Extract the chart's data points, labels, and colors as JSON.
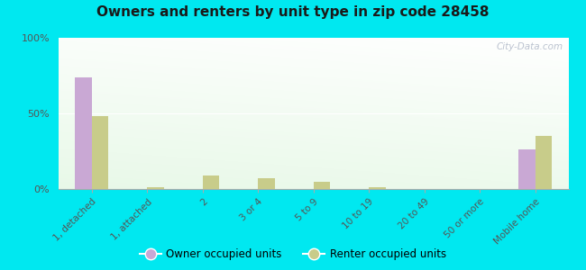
{
  "title": "Owners and renters by unit type in zip code 28458",
  "categories": [
    "1, detached",
    "1, attached",
    "2",
    "3 or 4",
    "5 to 9",
    "10 to 19",
    "20 to 49",
    "50 or more",
    "Mobile home"
  ],
  "owner_values": [
    74,
    0,
    0,
    0,
    0,
    0,
    0,
    0,
    26
  ],
  "renter_values": [
    48,
    1,
    9,
    7,
    5,
    1,
    0,
    0,
    35
  ],
  "owner_color": "#c9a8d4",
  "renter_color": "#c8cc8a",
  "outer_bg": "#00e8f0",
  "ylim": [
    0,
    100
  ],
  "yticks": [
    0,
    50,
    100
  ],
  "ytick_labels": [
    "0%",
    "50%",
    "100%"
  ],
  "bar_width": 0.3,
  "legend_owner": "Owner occupied units",
  "legend_renter": "Renter occupied units",
  "watermark": "City-Data.com"
}
